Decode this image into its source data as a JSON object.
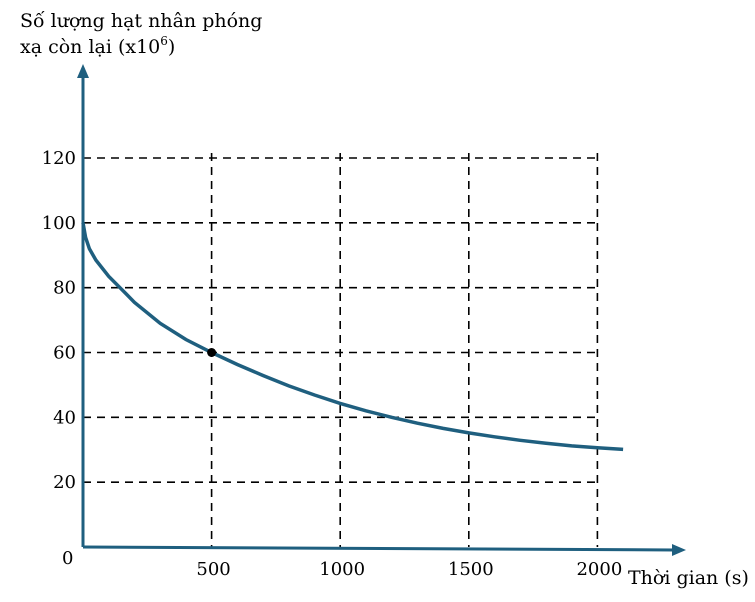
{
  "chart_data": {
    "type": "line",
    "ylabel_line1": "Số lượng hạt nhân phóng",
    "ylabel_line2_prefix": "xạ còn lại (x10",
    "ylabel_exponent": "6",
    "ylabel_suffix": ")",
    "xlabel": "Thời gian (s)",
    "origin_label": "0",
    "x_ticks": [
      "500",
      "1000",
      "1500",
      "2000"
    ],
    "y_ticks": [
      "20",
      "40",
      "60",
      "80",
      "100",
      "120"
    ],
    "x_grid": [
      500,
      1000,
      1500,
      2000
    ],
    "y_grid": [
      20,
      40,
      60,
      80,
      100,
      120
    ],
    "xlim": [
      0,
      2300
    ],
    "ylim": [
      0,
      120
    ],
    "grid": true,
    "series": [
      {
        "x": [
          0,
          10,
          25,
          50,
          100,
          150,
          200,
          300,
          400,
          500,
          600,
          700,
          800,
          900,
          1000,
          1100,
          1200,
          1300,
          1400,
          1500,
          1600,
          1700,
          1800,
          1900,
          2000,
          2100
        ],
        "y": [
          100,
          95.5,
          92,
          88.5,
          83.5,
          79.5,
          75.5,
          69,
          64,
          60,
          56.3,
          52.9,
          49.7,
          46.9,
          44.3,
          42,
          40,
          38.2,
          36.6,
          35.2,
          34,
          32.9,
          32,
          31.2,
          30.6,
          30.1
        ]
      }
    ],
    "marked_point": {
      "x": 500,
      "y": 60
    },
    "colors": {
      "curve": "#1f5f7f",
      "axes": "#1f5f7f",
      "grid": "#000000",
      "marker": "#000000"
    }
  }
}
